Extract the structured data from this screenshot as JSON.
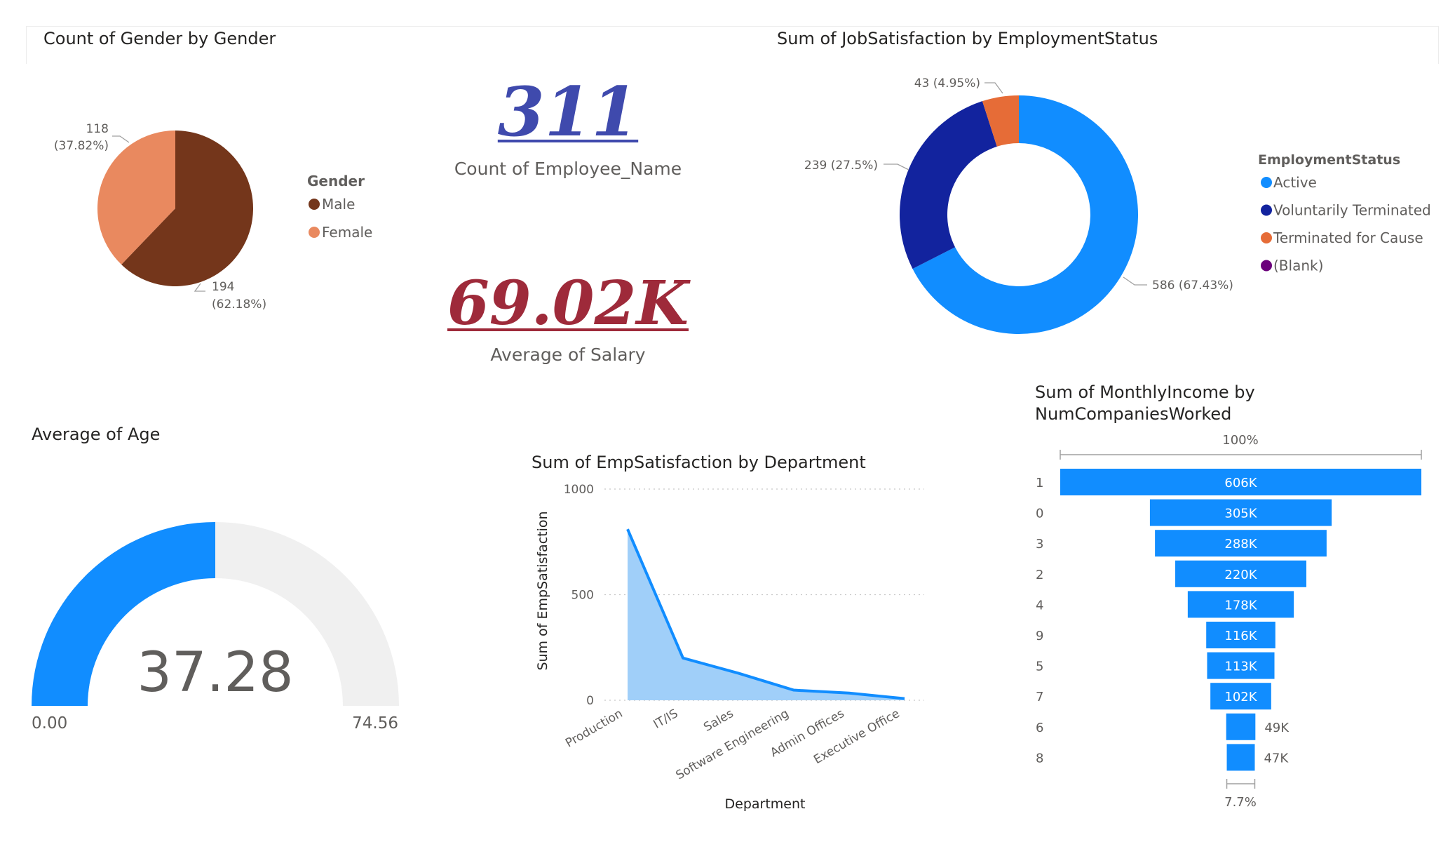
{
  "gender_chart": {
    "title": "Count of Gender by Gender",
    "legend_title": "Gender",
    "colors": {
      "Male": "#74361b",
      "Female": "#e9895f"
    },
    "chart_data": {
      "type": "pie",
      "title": "Count of Gender by Gender",
      "categories": [
        "Male",
        "Female"
      ],
      "values": [
        194,
        118
      ],
      "labels": [
        "194 (62.18%)",
        "118 (37.82%)"
      ],
      "legend_position": "right"
    }
  },
  "employee_card": {
    "value": "311",
    "label": "Count of Employee_Name",
    "color": "#3f4aad"
  },
  "salary_card": {
    "value": "69.02K",
    "label": "Average of Salary",
    "color": "#9e2a3a"
  },
  "job_satisfaction_chart": {
    "title": "Sum of JobSatisfaction by EmploymentStatus",
    "legend_title": "EmploymentStatus",
    "legend_items": [
      "Active",
      "Voluntarily Terminated",
      "Terminated for Cause",
      "(Blank)"
    ],
    "colors": {
      "Active": "#118dff",
      "Voluntarily Terminated": "#12239e",
      "Terminated for Cause": "#e66c37",
      "(Blank)": "#6b007b"
    },
    "chart_data": {
      "type": "pie",
      "variant": "donut",
      "title": "Sum of JobSatisfaction by EmploymentStatus",
      "categories": [
        "Active",
        "Voluntarily Terminated",
        "Terminated for Cause"
      ],
      "values": [
        586,
        239,
        43
      ],
      "labels": [
        "586 (67.43%)",
        "239 (27.5%)",
        "43 (4.95%)"
      ],
      "legend_position": "right"
    }
  },
  "age_gauge": {
    "title": "Average of Age",
    "value_text": "37.28",
    "min_text": "0.00",
    "max_text": "74.56",
    "fill_color": "#118dff",
    "track_color": "#f0f0f0",
    "chart_data": {
      "type": "gauge",
      "value": 37.28,
      "min": 0,
      "max": 74.56
    }
  },
  "emp_satisfaction_chart": {
    "title": "Sum of EmpSatisfaction by Department",
    "line_color": "#118dff",
    "fill_color": "#a0cff9",
    "chart_data": {
      "type": "area",
      "title": "Sum of EmpSatisfaction by Department",
      "xlabel": "Department",
      "ylabel": "Sum of EmpSatisfaction",
      "categories": [
        "Production",
        "IT/IS",
        "Sales",
        "Software Engineering",
        "Admin Offices",
        "Executive Office"
      ],
      "values": [
        810,
        200,
        128,
        48,
        34,
        8
      ],
      "ylim": [
        0,
        1000
      ],
      "yticks": [
        "1000",
        "500",
        "0"
      ],
      "grid": true
    }
  },
  "monthly_income_chart": {
    "title_line1": "Sum of MonthlyIncome by",
    "title_line2": "NumCompaniesWorked",
    "top_percent": "100%",
    "bottom_percent": "7.7%",
    "bar_color": "#118dff",
    "chart_data": {
      "type": "funnel",
      "title": "Sum of MonthlyIncome by NumCompaniesWorked",
      "categories": [
        "1",
        "0",
        "3",
        "2",
        "4",
        "9",
        "5",
        "7",
        "6",
        "8"
      ],
      "values": [
        606,
        305,
        288,
        220,
        178,
        116,
        113,
        102,
        49,
        47
      ],
      "value_labels": [
        "606K",
        "305K",
        "288K",
        "220K",
        "178K",
        "116K",
        "113K",
        "102K",
        "49K",
        "47K"
      ],
      "unit": "K"
    }
  }
}
